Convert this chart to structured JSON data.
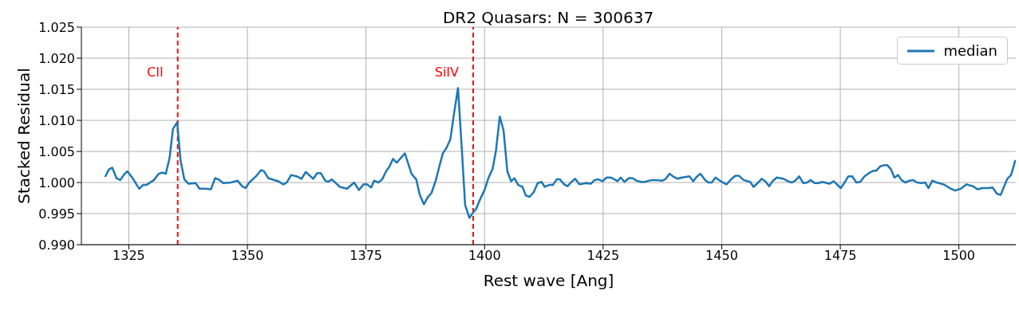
{
  "chart_data": {
    "type": "line",
    "title": "DR2 Quasars: N = 300637",
    "xlabel": "Rest wave [Ang]",
    "ylabel": "Stacked Residual",
    "x": [
      1320.0,
      1320.8,
      1321.5,
      1322.4,
      1323.2,
      1324.0,
      1324.7,
      1325.8,
      1327.2,
      1328.0,
      1328.7,
      1330.3,
      1331.3,
      1332.1,
      1332.8,
      1333.6,
      1334.3,
      1335.2,
      1335.9,
      1336.7,
      1337.6,
      1339.1,
      1339.9,
      1341.2,
      1342.3,
      1343.2,
      1343.9,
      1344.9,
      1346.5,
      1347.9,
      1348.9,
      1349.6,
      1350.4,
      1351.8,
      1352.9,
      1353.5,
      1354.4,
      1356.5,
      1357.6,
      1358.3,
      1359.2,
      1360.4,
      1361.4,
      1362.3,
      1363.9,
      1364.7,
      1365.5,
      1366.4,
      1367.0,
      1367.8,
      1369.5,
      1371.0,
      1372.5,
      1373.5,
      1374.5,
      1375.2,
      1376.1,
      1376.7,
      1377.6,
      1378.4,
      1379.3,
      1379.9,
      1380.7,
      1381.5,
      1383.2,
      1384.6,
      1385.6,
      1386.3,
      1387.2,
      1388.1,
      1388.8,
      1389.7,
      1390.5,
      1391.2,
      1392.0,
      1392.8,
      1393.6,
      1394.4,
      1395.2,
      1395.9,
      1396.8,
      1397.5,
      1398.2,
      1399.0,
      1400.0,
      1400.8,
      1401.7,
      1402.4,
      1403.2,
      1404.0,
      1404.8,
      1405.6,
      1406.3,
      1407.1,
      1408.0,
      1408.7,
      1409.5,
      1410.4,
      1411.2,
      1412.0,
      1412.7,
      1413.6,
      1414.4,
      1415.2,
      1415.9,
      1416.8,
      1417.5,
      1418.3,
      1419.1,
      1420.0,
      1421.4,
      1422.4,
      1423.2,
      1424.0,
      1424.9,
      1425.7,
      1426.6,
      1427.2,
      1428.0,
      1428.7,
      1429.5,
      1430.4,
      1431.2,
      1432.0,
      1433.0,
      1433.8,
      1435.2,
      1436.1,
      1437.5,
      1438.2,
      1439.0,
      1439.9,
      1440.7,
      1441.6,
      1443.2,
      1444.0,
      1444.7,
      1445.5,
      1446.5,
      1447.2,
      1447.9,
      1448.7,
      1449.8,
      1451.0,
      1452.1,
      1452.9,
      1453.6,
      1454.6,
      1456.0,
      1456.7,
      1457.7,
      1458.4,
      1459.2,
      1460.0,
      1460.7,
      1461.6,
      1463.0,
      1464.0,
      1464.8,
      1465.5,
      1466.3,
      1467.2,
      1468.0,
      1468.7,
      1469.6,
      1470.4,
      1471.2,
      1472.7,
      1473.6,
      1475.1,
      1475.9,
      1476.7,
      1477.5,
      1478.4,
      1479.2,
      1480.1,
      1481.2,
      1482.0,
      1482.6,
      1483.4,
      1484.3,
      1484.9,
      1485.7,
      1486.4,
      1487.2,
      1487.9,
      1488.7,
      1489.6,
      1490.3,
      1491.2,
      1492.1,
      1492.9,
      1493.6,
      1494.4,
      1495.3,
      1496.8,
      1498.1,
      1499.2,
      1500.4,
      1501.6,
      1503.0,
      1503.9,
      1504.9,
      1506.1,
      1507.1,
      1508.0,
      1508.8,
      1510.2,
      1511.0,
      1511.9
    ],
    "series": [
      {
        "name": "median",
        "color": "#1f77b4",
        "values": [
          1.0009,
          1.0021,
          1.0024,
          1.0007,
          1.0004,
          1.0013,
          1.0018,
          1.0007,
          0.999,
          0.9996,
          0.9996,
          1.0004,
          1.0014,
          1.0016,
          1.0014,
          1.004,
          1.0086,
          1.0097,
          1.0036,
          1.0005,
          0.9998,
          0.9999,
          0.999,
          0.999,
          0.9989,
          1.0007,
          1.0005,
          0.9999,
          1.0,
          1.0003,
          0.9994,
          0.9991,
          1.0,
          1.001,
          1.002,
          1.0018,
          1.0007,
          1.0002,
          0.9997,
          1.0,
          1.0012,
          1.001,
          1.0006,
          1.0017,
          1.0006,
          1.0015,
          1.0015,
          1.0003,
          1.0001,
          1.0005,
          0.9993,
          0.999,
          1.0,
          0.9988,
          0.9997,
          0.9997,
          0.9992,
          1.0003,
          1.0,
          1.0005,
          1.0019,
          1.0025,
          1.0038,
          1.0032,
          1.0047,
          1.0014,
          1.0005,
          0.9981,
          0.9965,
          0.9977,
          0.9983,
          1.0003,
          1.0027,
          1.0047,
          1.0056,
          1.007,
          1.0113,
          1.0152,
          1.0054,
          0.9964,
          0.9943,
          0.9951,
          0.9957,
          0.9972,
          0.9988,
          1.0007,
          1.0022,
          1.0051,
          1.0106,
          1.0084,
          1.0018,
          1.0002,
          1.0007,
          0.9996,
          0.9993,
          0.9979,
          0.9977,
          0.9985,
          0.9999,
          1.0001,
          0.9993,
          0.9996,
          0.9996,
          1.0005,
          1.0005,
          0.9997,
          0.9994,
          1.0001,
          1.0006,
          0.9997,
          0.9999,
          0.9998,
          1.0004,
          1.0005,
          1.0002,
          1.0008,
          1.0008,
          1.0006,
          1.0002,
          1.0008,
          1.0001,
          1.0007,
          1.0007,
          1.0003,
          1.0001,
          1.0001,
          1.0004,
          1.0004,
          1.0003,
          1.0006,
          1.0014,
          1.0009,
          1.0006,
          1.0008,
          1.001,
          1.0002,
          1.0009,
          1.0014,
          1.0004,
          1.0,
          1.0,
          1.0008,
          1.0002,
          0.9997,
          1.0006,
          1.0011,
          1.0011,
          1.0004,
          1.0001,
          0.9993,
          1.0,
          1.0006,
          1.0002,
          0.9994,
          1.0002,
          1.0008,
          1.0006,
          1.0002,
          1.0,
          1.0003,
          1.001,
          0.9999,
          1.0,
          1.0004,
          0.9999,
          0.9999,
          1.0001,
          0.9998,
          1.0002,
          0.9991,
          1.0,
          1.001,
          1.001,
          1.0,
          1.0001,
          1.001,
          1.0016,
          1.0019,
          1.0019,
          1.0026,
          1.0028,
          1.0028,
          1.0021,
          1.0008,
          1.0012,
          1.0004,
          1.0,
          1.0003,
          1.0004,
          1.0,
          0.9999,
          1.0,
          0.9991,
          1.0003,
          1.0,
          0.9997,
          0.9991,
          0.9987,
          0.999,
          0.9997,
          0.9994,
          0.9989,
          0.9991,
          0.9991,
          0.9992,
          0.9982,
          0.998,
          1.0006,
          1.0012,
          1.0036
        ]
      }
    ],
    "xlim": [
      1315,
      1512
    ],
    "xticks": [
      1325,
      1350,
      1375,
      1400,
      1425,
      1450,
      1475,
      1500
    ],
    "ylim": [
      0.99,
      1.025
    ],
    "yticks": [
      {
        "value": 0.99,
        "label": "0.990"
      },
      {
        "value": 0.995,
        "label": "0.995"
      },
      {
        "value": 1.0,
        "label": "1.000"
      },
      {
        "value": 1.005,
        "label": "1.005"
      },
      {
        "value": 1.01,
        "label": "1.010"
      },
      {
        "value": 1.015,
        "label": "1.015"
      },
      {
        "value": 1.02,
        "label": "1.020"
      },
      {
        "value": 1.025,
        "label": "1.025"
      }
    ],
    "ref_lines": [
      {
        "axis": "x",
        "value": 1335.3,
        "label": "CII",
        "color": "#ff0000",
        "line_style": "dashed"
      },
      {
        "axis": "x",
        "value": 1397.6,
        "label": "SiIV",
        "color": "#ff0000",
        "line_style": "dashed"
      }
    ],
    "grid": true,
    "legend": "top right",
    "marker": "none",
    "line_style": "solid"
  }
}
